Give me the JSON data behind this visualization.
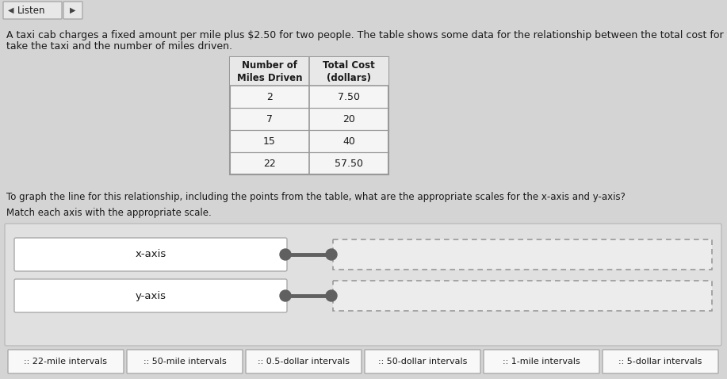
{
  "background_color": "#d4d4d4",
  "paragraph_line1": "A taxi cab charges a fixed amount per mile plus $2.50 for two people. The table shows some data for the relationship between the total cost for two people to",
  "paragraph_line2": "take the taxi and the number of miles driven.",
  "table_header_col1": "Number of\nMiles Driven",
  "table_header_col2": "Total Cost\n(dollars)",
  "table_rows": [
    [
      "2",
      "7.50"
    ],
    [
      "7",
      "20"
    ],
    [
      "15",
      "40"
    ],
    [
      "22",
      "57.50"
    ]
  ],
  "question": "To graph the line for this relationship, including the points from the table, what are the appropriate scales for the x-axis and y-axis?",
  "instruction": "Match each axis with the appropriate scale.",
  "axis_labels": [
    "x-axis",
    "y-axis"
  ],
  "drop_options": [
    ":: 22-mile intervals",
    ":: 50-mile intervals",
    ":: 0.5-dollar intervals",
    ":: 50-dollar intervals",
    ":: 1-mile intervals",
    ":: 5-dollar intervals"
  ],
  "white_box_fill": "#ffffff",
  "dashed_box_fill": "#ececec",
  "connector_color": "#606060",
  "table_bg": "#f5f5f5",
  "table_header_bg": "#e8e8e8",
  "table_border": "#999999",
  "text_color": "#1a1a1a",
  "match_area_bg": "#e0e0e0",
  "match_area_border": "#bbbbbb",
  "option_bg": "#f8f8f8",
  "option_border": "#aaaaaa",
  "main_bg": "#d4d4d4",
  "listen_box_bg": "#e8e8e8",
  "listen_box_border": "#aaaaaa",
  "font_size_para": 9.0,
  "font_size_table_header": 8.5,
  "font_size_table_data": 9.0,
  "font_size_question": 8.5,
  "font_size_instruction": 8.5,
  "font_size_axis_label": 9.5,
  "font_size_option": 8.0,
  "font_size_listen": 8.5
}
